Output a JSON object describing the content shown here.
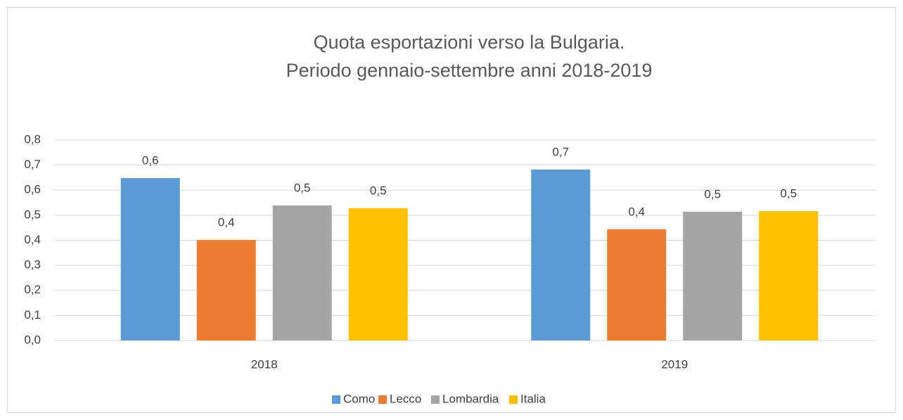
{
  "chart_data": {
    "type": "bar",
    "title": [
      "Quota esportazioni verso la Bulgaria.",
      "Periodo gennaio-settembre anni 2018-2019"
    ],
    "categories": [
      "2018",
      "2019"
    ],
    "series": [
      {
        "name": "Como",
        "color": "#5b9bd5",
        "values": [
          0.648,
          0.682
        ],
        "value_labels": [
          "0,6",
          "0,7"
        ]
      },
      {
        "name": "Lecco",
        "color": "#ed7d31",
        "values": [
          0.401,
          0.444
        ],
        "value_labels": [
          "0,4",
          "0,4"
        ]
      },
      {
        "name": "Lombardia",
        "color": "#a5a5a5",
        "values": [
          0.539,
          0.514
        ],
        "value_labels": [
          "0,5",
          "0,5"
        ]
      },
      {
        "name": "Italia",
        "color": "#ffc000",
        "values": [
          0.528,
          0.516
        ],
        "value_labels": [
          "0,5",
          "0,5"
        ]
      }
    ],
    "ylim": [
      0,
      0.8
    ],
    "yticks": [
      {
        "value": 0,
        "label": "0,0"
      },
      {
        "value": 0.1,
        "label": "0,1"
      },
      {
        "value": 0.2,
        "label": "0,2"
      },
      {
        "value": 0.3,
        "label": "0,3"
      },
      {
        "value": 0.4,
        "label": "0,4"
      },
      {
        "value": 0.5,
        "label": "0,5"
      },
      {
        "value": 0.6,
        "label": "0,6"
      },
      {
        "value": 0.7,
        "label": "0,7"
      },
      {
        "value": 0.8,
        "label": "0,8"
      }
    ],
    "grid": true,
    "legend": "bottom"
  }
}
